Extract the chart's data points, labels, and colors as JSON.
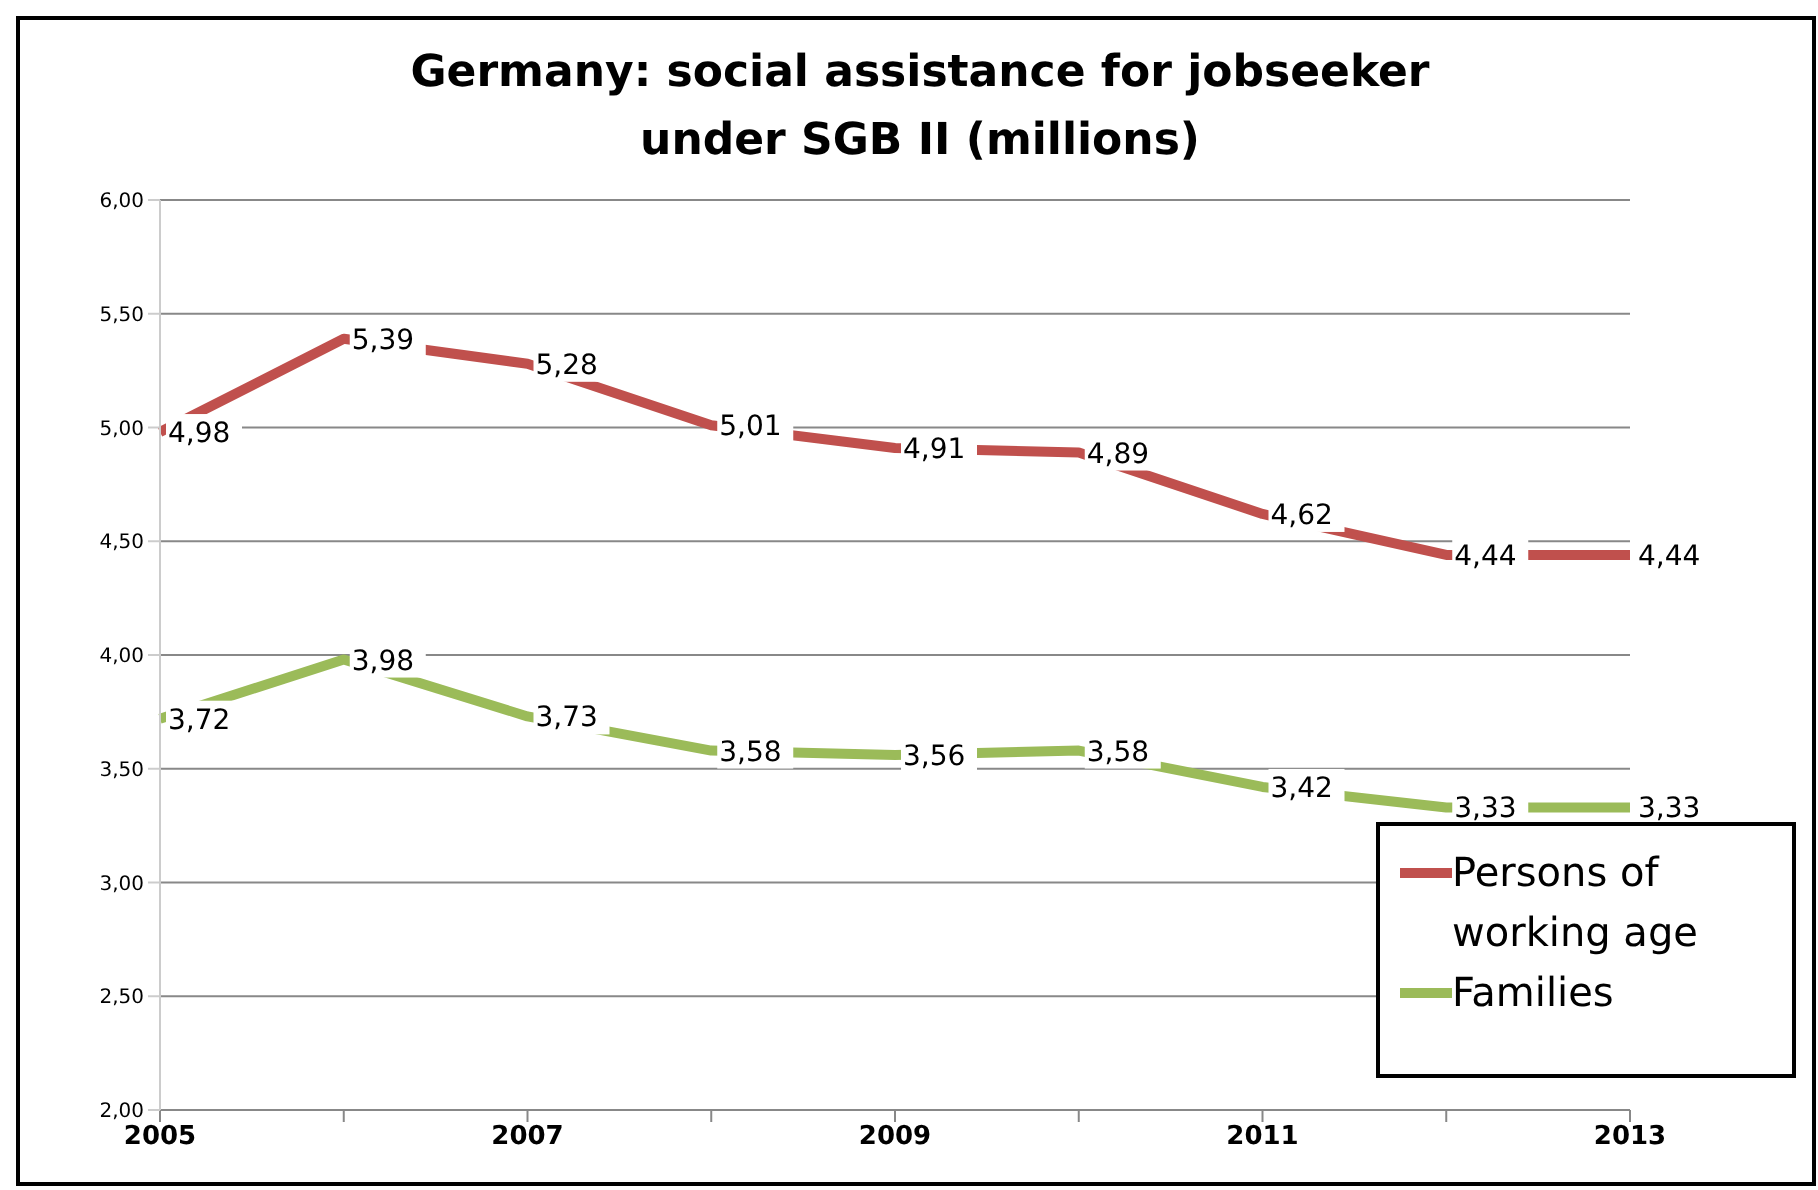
{
  "chart_data": {
    "type": "line",
    "title": "Germany: social assistance for jobseeker under SGB II (millions)",
    "categories": [
      "2005",
      null,
      "2007",
      null,
      "2009",
      null,
      "2011",
      null,
      "2013"
    ],
    "series": [
      {
        "name": "Persons of working age",
        "color": "#c0504d",
        "values": [
          4.98,
          5.39,
          5.28,
          5.01,
          4.91,
          4.89,
          4.62,
          4.44,
          4.44
        ],
        "value_labels": [
          "4,98",
          "5,39",
          "5,28",
          "5,01",
          "4,91",
          "4,89",
          "4,62",
          "4,44",
          "4,44"
        ]
      },
      {
        "name": "Families",
        "color": "#9bbb59",
        "values": [
          3.72,
          3.98,
          3.73,
          3.58,
          3.56,
          3.58,
          3.42,
          3.33,
          3.33
        ],
        "value_labels": [
          "3,72",
          "3,98",
          "3,73",
          "3,58",
          "3,56",
          "3,58",
          "3,42",
          "3,33",
          "3,33"
        ]
      }
    ],
    "ylim": [
      2,
      6
    ],
    "yticks": [
      {
        "value": 2,
        "label": "2,00"
      },
      {
        "value": 2.5,
        "label": "2,50"
      },
      {
        "value": 3,
        "label": "3,00"
      },
      {
        "value": 3.5,
        "label": "3,50"
      },
      {
        "value": 4,
        "label": "4,00"
      },
      {
        "value": 4.5,
        "label": "4,50"
      },
      {
        "value": 5,
        "label": "5,00"
      },
      {
        "value": 5.5,
        "label": "5,50"
      },
      {
        "value": 6,
        "label": "6,00"
      }
    ],
    "grid": "y",
    "legend": "bottom right",
    "marker": "none",
    "line_style": "solid"
  }
}
